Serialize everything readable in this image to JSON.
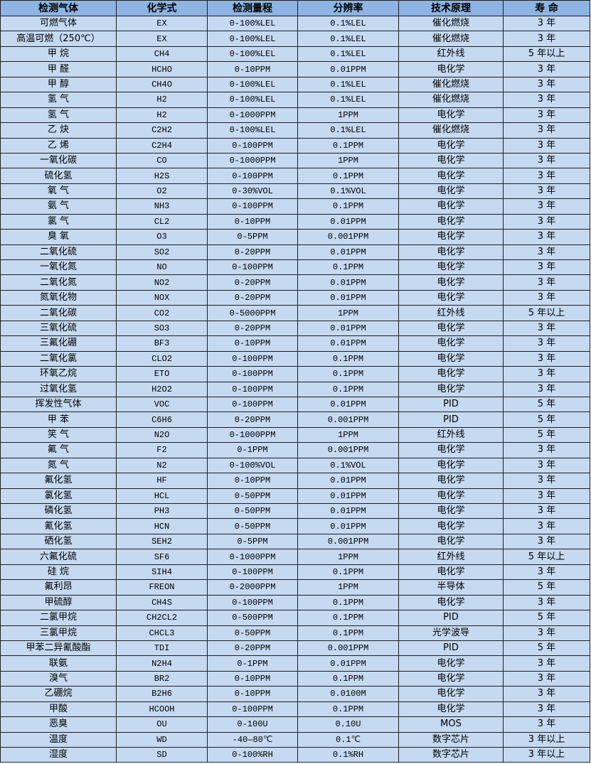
{
  "colors": {
    "header_bg": "#8db4e2",
    "row_bg": "#c5d9f1",
    "border": "#1f1f1f"
  },
  "table": {
    "headers": [
      "检测气体",
      "化学式",
      "检测量程",
      "分辨率",
      "技术原理",
      "寿 命"
    ],
    "rows": [
      [
        "可燃气体",
        "EX",
        "0-100%LEL",
        "0.1%LEL",
        "催化燃烧",
        "3 年"
      ],
      [
        "高温可燃（250℃）",
        "EX",
        "0-100%LEL",
        "0.1%LEL",
        "催化燃烧",
        "3 年"
      ],
      [
        "甲 烷",
        "CH4",
        "0-100%LEL",
        "0.1%LEL",
        "红外线",
        "5 年以上"
      ],
      [
        "甲 醛",
        "HCHO",
        "0-10PPM",
        "0.01PPM",
        "电化学",
        "3 年"
      ],
      [
        "甲 醇",
        "CH4O",
        "0-100%LEL",
        "0.1%LEL",
        "催化燃烧",
        "3 年"
      ],
      [
        "氢 气",
        "H2",
        "0-100%LEL",
        "0.1%LEL",
        "催化燃烧",
        "3 年"
      ],
      [
        "氢 气",
        "H2",
        "0-1000PPM",
        "1PPM",
        "电化学",
        "3 年"
      ],
      [
        "乙 炔",
        "C2H2",
        "0-100%LEL",
        "0.1%LEL",
        "催化燃烧",
        "3 年"
      ],
      [
        "乙 烯",
        "C2H4",
        "0-100PPM",
        "0.1PPM",
        "电化学",
        "3 年"
      ],
      [
        "一氧化碳",
        "CO",
        "0-1000PPM",
        "1PPM",
        "电化学",
        "3 年"
      ],
      [
        "硫化氢",
        "H2S",
        "0-100PPM",
        "0.1PPM",
        "电化学",
        "3 年"
      ],
      [
        "氧 气",
        "O2",
        "0-30%VOL",
        "0.1%VOL",
        "电化学",
        "3 年"
      ],
      [
        "氨 气",
        "NH3",
        "0-100PPM",
        "0.1PPM",
        "电化学",
        "3 年"
      ],
      [
        "氯 气",
        "CL2",
        "0-10PPM",
        "0.01PPM",
        "电化学",
        "3 年"
      ],
      [
        "臭 氧",
        "O3",
        "0-5PPM",
        "0.001PPM",
        "电化学",
        "3 年"
      ],
      [
        "二氧化硫",
        "SO2",
        "0-20PPM",
        "0.01PPM",
        "电化学",
        "3 年"
      ],
      [
        "一氧化氮",
        "NO",
        "0-100PPM",
        "0.1PPM",
        "电化学",
        "3 年"
      ],
      [
        "二氧化氮",
        "NO2",
        "0-20PPM",
        "0.01PPM",
        "电化学",
        "3 年"
      ],
      [
        "氮氧化物",
        "NOX",
        "0-20PPM",
        "0.01PPM",
        "电化学",
        "3 年"
      ],
      [
        "二氧化碳",
        "CO2",
        "0-5000PPM",
        "1PPM",
        "红外线",
        "5 年以上"
      ],
      [
        "三氧化硫",
        "SO3",
        "0-20PPM",
        "0.01PPM",
        "电化学",
        "3 年"
      ],
      [
        "三氟化硼",
        "BF3",
        "0-10PPM",
        "0.01PPM",
        "电化学",
        "3 年"
      ],
      [
        "二氧化氯",
        "CLO2",
        "0-100PPM",
        "0.1PPM",
        "电化学",
        "3 年"
      ],
      [
        "环氧乙烷",
        "ETO",
        "0-100PPM",
        "0.1PPM",
        "电化学",
        "3 年"
      ],
      [
        "过氧化氢",
        "H2O2",
        "0-100PPM",
        "0.1PPM",
        "电化学",
        "3 年"
      ],
      [
        "挥发性气体",
        "VOC",
        "0-100PPM",
        "0.01PPM",
        "PID",
        "5 年"
      ],
      [
        "甲 苯",
        "C6H6",
        "0-20PPM",
        "0.001PPM",
        "PID",
        "5 年"
      ],
      [
        "笑 气",
        "N2O",
        "0-1000PPM",
        "1PPM",
        "红外线",
        "5 年"
      ],
      [
        "氟 气",
        "F2",
        "0-1PPM",
        "0.001PPM",
        "电化学",
        "3 年"
      ],
      [
        "氮 气",
        "N2",
        "0-100%VOL",
        "0.1%VOL",
        "电化学",
        "3 年"
      ],
      [
        "氟化氢",
        "HF",
        "0-10PPM",
        "0.01PPM",
        "电化学",
        "3 年"
      ],
      [
        "氯化氢",
        "HCL",
        "0-50PPM",
        "0.01PPM",
        "电化学",
        "3 年"
      ],
      [
        "磷化氢",
        "PH3",
        "0-50PPM",
        "0.01PPM",
        "电化学",
        "3 年"
      ],
      [
        "氰化氢",
        "HCN",
        "0-50PPM",
        "0.01PPM",
        "电化学",
        "3 年"
      ],
      [
        "硒化氢",
        "SEH2",
        "0-5PPM",
        "0.001PPM",
        "电化学",
        "3 年"
      ],
      [
        "六氟化硫",
        "SF6",
        "0-1000PPM",
        "1PPM",
        "红外线",
        "5 年以上"
      ],
      [
        "硅 烷",
        "SIH4",
        "0-100PPM",
        "0.1PPM",
        "电化学",
        "3 年"
      ],
      [
        "氟利昂",
        "FREON",
        "0-2000PPM",
        "1PPM",
        "半导体",
        "5 年"
      ],
      [
        "甲硫醇",
        "CH4S",
        "0-100PPM",
        "0.1PPM",
        "电化学",
        "3 年"
      ],
      [
        "二氯甲烷",
        "CH2CL2",
        "0-500PPM",
        "0.1PPM",
        "PID",
        "5 年"
      ],
      [
        "三氯甲烷",
        "CHCL3",
        "0-50PPM",
        "0.1PPM",
        "光学波导",
        "3 年"
      ],
      [
        "甲苯二异氰酸酯",
        "TDI",
        "0-20PPM",
        "0.001PPM",
        "PID",
        "5 年"
      ],
      [
        "联氨",
        "N2H4",
        "0-1PPM",
        "0.01PPM",
        "电化学",
        "3 年"
      ],
      [
        "溴气",
        "BR2",
        "0-10PPM",
        "0.1PPM",
        "电化学",
        "3 年"
      ],
      [
        "乙硼烷",
        "B2H6",
        "0-10PPM",
        "0.0100M",
        "电化学",
        "3 年"
      ],
      [
        "甲酸",
        "HCOOH",
        "0-100PPM",
        "0.1PPM",
        "电化学",
        "3 年"
      ],
      [
        "恶臭",
        "OU",
        "0-100U",
        "0.10U",
        "MOS",
        "3 年"
      ],
      [
        "温度",
        "WD",
        "-40—80℃",
        "0.1℃",
        "数字芯片",
        "3 年以上"
      ],
      [
        "湿度",
        "SD",
        "0-100%RH",
        "0.1%RH",
        "数字芯片",
        "3 年以上"
      ]
    ]
  }
}
